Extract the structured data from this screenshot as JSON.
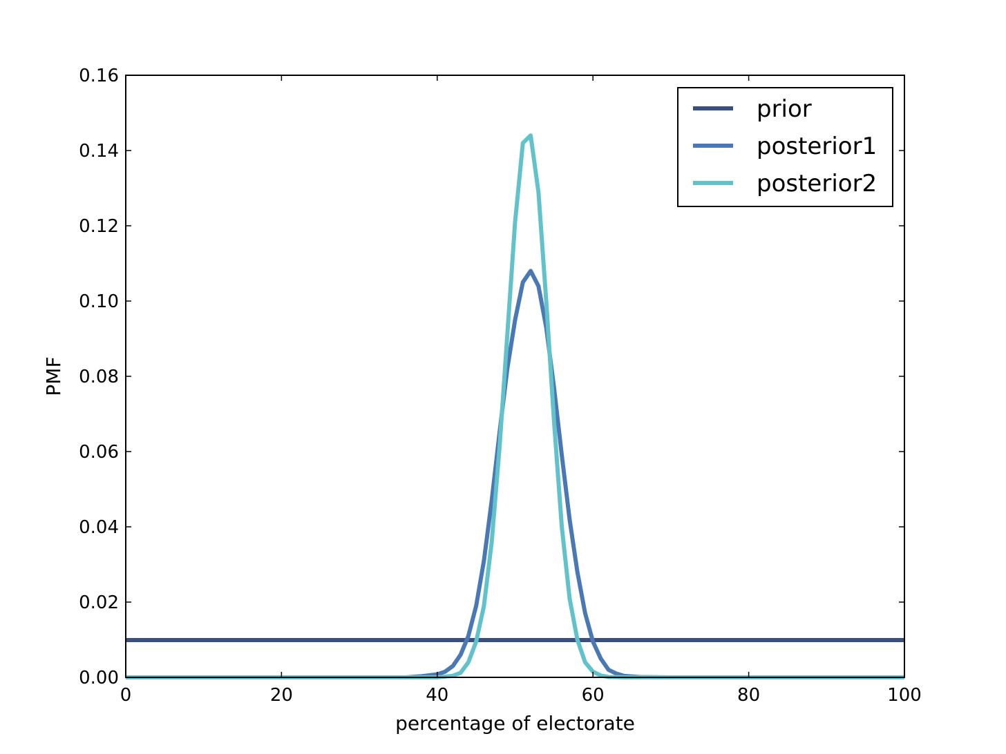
{
  "chart_data": {
    "type": "line",
    "title": "",
    "xlabel": "percentage of electorate",
    "ylabel": "PMF",
    "xlim": [
      0,
      100
    ],
    "ylim": [
      0,
      0.16
    ],
    "xticks": [
      "0",
      "20",
      "40",
      "60",
      "80",
      "100"
    ],
    "yticks": [
      "0.00",
      "0.02",
      "0.04",
      "0.06",
      "0.08",
      "0.10",
      "0.12",
      "0.14",
      "0.16"
    ],
    "grid": false,
    "legend_position": "top-right",
    "series": [
      {
        "name": "prior",
        "color": "#3b4f7f",
        "x": [
          0,
          100
        ],
        "y": [
          0.0099,
          0.0099
        ]
      },
      {
        "name": "posterior1",
        "color": "#4a78b5",
        "x": [
          0,
          36,
          38,
          40,
          41,
          42,
          43,
          44,
          45,
          46,
          47,
          48,
          49,
          50,
          51,
          52,
          53,
          54,
          55,
          56,
          57,
          58,
          59,
          60,
          61,
          62,
          63,
          64,
          66,
          70,
          100
        ],
        "y": [
          0,
          0,
          0.0003,
          0.0008,
          0.0015,
          0.003,
          0.006,
          0.011,
          0.019,
          0.031,
          0.047,
          0.065,
          0.082,
          0.095,
          0.105,
          0.108,
          0.104,
          0.093,
          0.077,
          0.059,
          0.042,
          0.028,
          0.017,
          0.0095,
          0.005,
          0.002,
          0.001,
          0.0004,
          0.0001,
          0,
          0
        ]
      },
      {
        "name": "posterior2",
        "color": "#62c2cc",
        "x": [
          0,
          40,
          42,
          43,
          44,
          45,
          46,
          47,
          48,
          49,
          50,
          51,
          52,
          53,
          54,
          55,
          56,
          57,
          58,
          59,
          60,
          61,
          62,
          64,
          100
        ],
        "y": [
          0,
          0,
          0.0004,
          0.0012,
          0.004,
          0.0095,
          0.019,
          0.036,
          0.061,
          0.091,
          0.121,
          0.142,
          0.144,
          0.129,
          0.1,
          0.068,
          0.04,
          0.021,
          0.01,
          0.004,
          0.0015,
          0.0005,
          0.0001,
          0,
          0
        ]
      }
    ]
  }
}
